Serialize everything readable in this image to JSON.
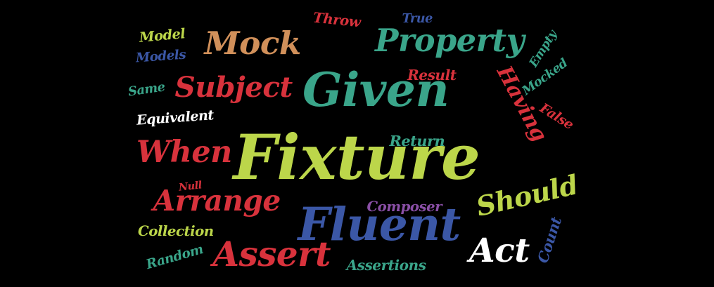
{
  "words": [
    {
      "text": "Fixture",
      "color": "#bcd64a"
    },
    {
      "text": "Given",
      "color": "#3aa58a"
    },
    {
      "text": "Fluent",
      "color": "#3b57a6"
    },
    {
      "text": "Property",
      "color": "#3aa58a"
    },
    {
      "text": "Subject",
      "color": "#d8323c"
    },
    {
      "text": "Mock",
      "color": "#d1905a"
    },
    {
      "text": "When",
      "color": "#d8323c"
    },
    {
      "text": "Arrange",
      "color": "#d8323c"
    },
    {
      "text": "Assert",
      "color": "#d8323c"
    },
    {
      "text": "Should",
      "color": "#bcd64a"
    },
    {
      "text": "Act",
      "color": "#ffffff"
    },
    {
      "text": "Having",
      "color": "#d8323c"
    },
    {
      "text": "Model",
      "color": "#bcd64a"
    },
    {
      "text": "Models",
      "color": "#3b57a6"
    },
    {
      "text": "Same",
      "color": "#3aa58a"
    },
    {
      "text": "Equivalent",
      "color": "#ffffff"
    },
    {
      "text": "Throw",
      "color": "#d8323c"
    },
    {
      "text": "True",
      "color": "#3b57a6"
    },
    {
      "text": "Result",
      "color": "#d8323c"
    },
    {
      "text": "Empty",
      "color": "#3aa58a"
    },
    {
      "text": "Mocked",
      "color": "#3aa58a"
    },
    {
      "text": "False",
      "color": "#d8323c"
    },
    {
      "text": "Return",
      "color": "#3aa58a"
    },
    {
      "text": "Null",
      "color": "#d8323c"
    },
    {
      "text": "Composer",
      "color": "#8a4fa6"
    },
    {
      "text": "Collection",
      "color": "#bcd64a"
    },
    {
      "text": "Random",
      "color": "#3aa58a"
    },
    {
      "text": "Assertions",
      "color": "#3aa58a"
    },
    {
      "text": "Count",
      "color": "#3b57a6"
    }
  ]
}
